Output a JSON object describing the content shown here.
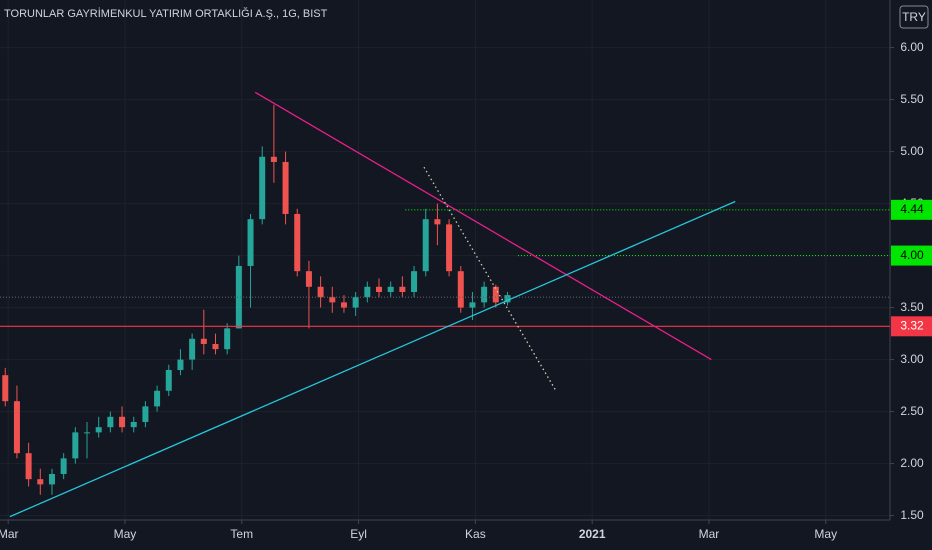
{
  "chart_data": {
    "type": "candlestick",
    "title": "TORUNLAR GAYRİMENKUL YATIRIM ORTAKLIĞI A.Ş., 1G, BIST",
    "currency": "TRY",
    "up_color": "#26a69a",
    "down_color": "#ef5350",
    "grid": true,
    "xlim": [
      -0.14,
      15.1
    ],
    "xticks": [
      {
        "value": 0,
        "label": "Mar"
      },
      {
        "value": 2,
        "label": "May"
      },
      {
        "value": 4,
        "label": "Tem"
      },
      {
        "value": 6,
        "label": "Eyl"
      },
      {
        "value": 8,
        "label": "Kas"
      },
      {
        "value": 10,
        "label": "2021"
      },
      {
        "value": 12,
        "label": "Mar"
      },
      {
        "value": 14,
        "label": "May"
      }
    ],
    "ylim": [
      1.32,
      6.32
    ],
    "yticks": [
      {
        "value": 1.5,
        "label": "1.50"
      },
      {
        "value": 2,
        "label": "2.00"
      },
      {
        "value": 2.5,
        "label": "2.50"
      },
      {
        "value": 3,
        "label": "3.00"
      },
      {
        "value": 3.5,
        "label": "3.50"
      },
      {
        "value": 4,
        "label": "4.00"
      },
      {
        "value": 4.5,
        "label": "4.50"
      },
      {
        "value": 5,
        "label": "5.00"
      },
      {
        "value": 5.5,
        "label": "5.50"
      },
      {
        "value": 6,
        "label": "6.00"
      }
    ],
    "x": [
      -0.05,
      0.15,
      0.35,
      0.55,
      0.75,
      0.95,
      1.15,
      1.35,
      1.55,
      1.75,
      1.95,
      2.15,
      2.35,
      2.55,
      2.75,
      2.95,
      3.15,
      3.35,
      3.55,
      3.75,
      3.95,
      4.15,
      4.35,
      4.55,
      4.75,
      4.95,
      5.15,
      5.35,
      5.55,
      5.75,
      5.95,
      6.15,
      6.35,
      6.55,
      6.75,
      6.95,
      7.15,
      7.35,
      7.55,
      7.75,
      7.95,
      8.15,
      8.35,
      8.55
    ],
    "open": [
      2.85,
      2.6,
      2.1,
      1.85,
      1.8,
      1.9,
      2.05,
      2.3,
      2.3,
      2.35,
      2.45,
      2.35,
      2.4,
      2.55,
      2.7,
      2.9,
      3.0,
      3.2,
      3.15,
      3.1,
      3.3,
      3.9,
      4.35,
      4.95,
      4.9,
      4.4,
      3.85,
      3.7,
      3.6,
      3.55,
      3.5,
      3.6,
      3.7,
      3.65,
      3.7,
      3.65,
      3.85,
      4.35,
      4.3,
      3.85,
      3.5,
      3.55,
      3.7,
      3.55
    ],
    "high": [
      2.92,
      2.75,
      2.2,
      1.95,
      1.95,
      2.1,
      2.35,
      2.4,
      2.45,
      2.5,
      2.55,
      2.45,
      2.6,
      2.75,
      2.95,
      3.1,
      3.25,
      3.48,
      3.25,
      3.35,
      4.0,
      4.4,
      5.05,
      5.45,
      5.0,
      4.45,
      3.95,
      3.8,
      3.7,
      3.62,
      3.65,
      3.75,
      3.78,
      3.75,
      3.8,
      3.9,
      4.45,
      4.5,
      4.35,
      3.9,
      3.65,
      3.75,
      3.72,
      3.65
    ],
    "low": [
      2.55,
      2.05,
      1.78,
      1.7,
      1.7,
      1.85,
      2.0,
      2.05,
      2.25,
      2.3,
      2.3,
      2.3,
      2.35,
      2.5,
      2.65,
      2.85,
      2.9,
      3.05,
      3.05,
      3.05,
      3.3,
      3.5,
      4.3,
      4.7,
      4.3,
      3.8,
      3.3,
      3.5,
      3.45,
      3.45,
      3.42,
      3.55,
      3.6,
      3.6,
      3.6,
      3.6,
      3.8,
      4.1,
      3.8,
      3.45,
      3.38,
      3.5,
      3.5,
      3.52
    ],
    "close": [
      2.6,
      2.1,
      1.85,
      1.8,
      1.9,
      2.05,
      2.3,
      2.3,
      2.35,
      2.45,
      2.35,
      2.4,
      2.55,
      2.7,
      2.9,
      3.0,
      3.2,
      3.15,
      3.1,
      3.3,
      3.9,
      4.35,
      4.95,
      4.9,
      4.4,
      3.85,
      3.7,
      3.6,
      3.55,
      3.5,
      3.6,
      3.7,
      3.65,
      3.7,
      3.65,
      3.85,
      4.35,
      4.3,
      3.85,
      3.5,
      3.55,
      3.7,
      3.55,
      3.62
    ],
    "drawings": [
      {
        "color": "#e91e8c",
        "dash": false,
        "x": [
          4.23,
          12.04
        ],
        "y": [
          5.57,
          3.0
        ]
      },
      {
        "color": "#26c6da",
        "dash": false,
        "x": [
          0.03,
          12.45
        ],
        "y": [
          1.49,
          4.52
        ]
      },
      {
        "color": "#d0d0b0",
        "dash": true,
        "x": [
          7.12,
          9.38
        ],
        "y": [
          4.85,
          2.7
        ]
      }
    ],
    "levels": [
      {
        "value": 4.44,
        "label": "4.44",
        "color": "#00e600",
        "text_color": "#000000",
        "from": 6.8,
        "dash": true
      },
      {
        "value": 4.0,
        "label": "4.00",
        "color": "#00e600",
        "text_color": "#000000",
        "from": 8.73,
        "dash": true
      },
      {
        "value": 3.6,
        "color": "#5d606b",
        "dash": true
      },
      {
        "value": 3.32,
        "label": "3.32",
        "color": "#f23645",
        "text_color": "#ffffff",
        "dash": false
      }
    ]
  }
}
